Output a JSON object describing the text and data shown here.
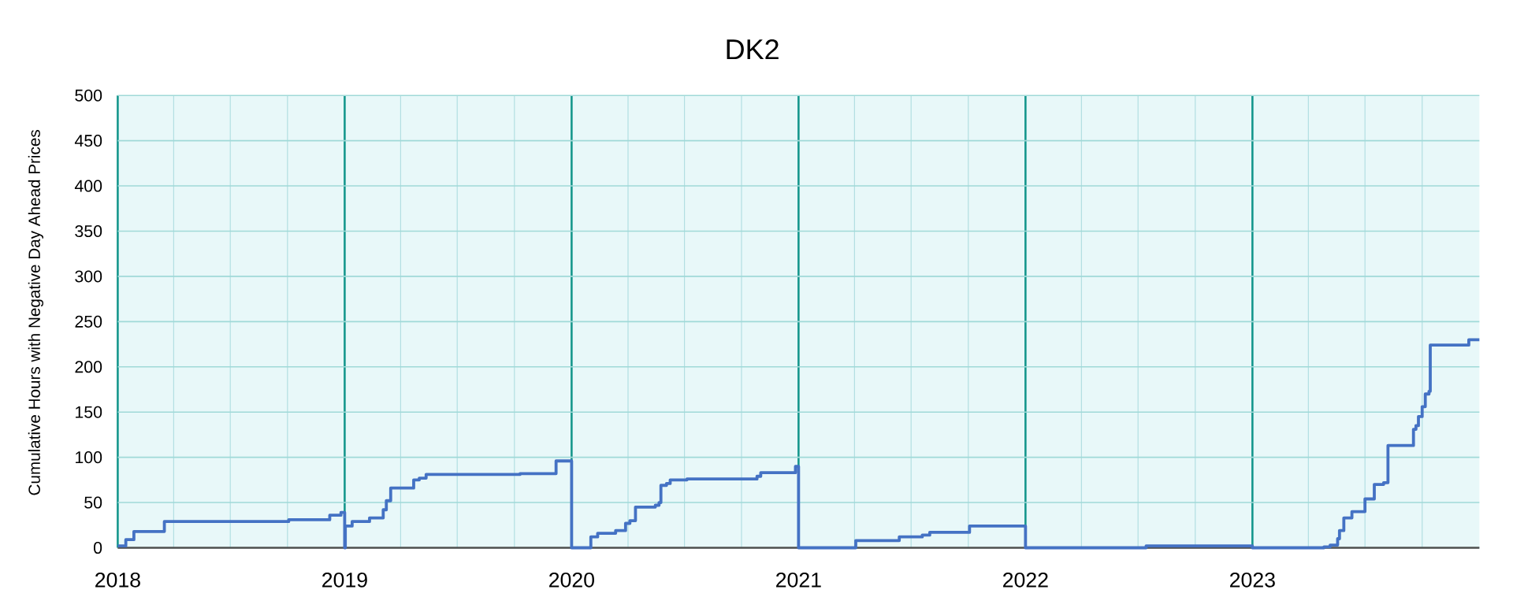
{
  "chart_data": {
    "type": "step",
    "title": "DK2",
    "ylabel": "Cumulative Hours with Negative Day Ahead Prices",
    "x": [
      "2018-01-01",
      "2018-01-14",
      "2018-01-27",
      "2018-03-17",
      "2018-10-03",
      "2018-12-08",
      "2018-12-26",
      "2019-01-01",
      "2019-01-02",
      "2019-01-13",
      "2019-02-10",
      "2019-03-04",
      "2019-03-09",
      "2019-03-16",
      "2019-04-22",
      "2019-05-01",
      "2019-05-12",
      "2019-10-10",
      "2019-12-07",
      "2020-01-01",
      "2020-02-01",
      "2020-02-12",
      "2020-03-12",
      "2020-03-28",
      "2020-04-04",
      "2020-04-13",
      "2020-05-15",
      "2020-05-21",
      "2020-05-24",
      "2020-06-02",
      "2020-06-08",
      "2020-07-05",
      "2020-10-26",
      "2020-11-01",
      "2020-12-27",
      "2021-01-01",
      "2021-04-03",
      "2021-06-12",
      "2021-07-19",
      "2021-07-31",
      "2021-10-03",
      "2022-01-01",
      "2022-07-14",
      "2023-01-01",
      "2023-04-26",
      "2023-05-06",
      "2023-05-18",
      "2023-05-21",
      "2023-05-28",
      "2023-06-10",
      "2023-07-01",
      "2023-07-16",
      "2023-07-31",
      "2023-08-07",
      "2023-09-17",
      "2023-09-21",
      "2023-09-25",
      "2023-10-01",
      "2023-10-06",
      "2023-10-12",
      "2023-10-14",
      "2023-12-15",
      "2024-01-01"
    ],
    "values": [
      2,
      9,
      18,
      29,
      31,
      36,
      39,
      0,
      24,
      29,
      33,
      42,
      52,
      66,
      75,
      77,
      81,
      82,
      96,
      0,
      12,
      16,
      19,
      27,
      30,
      45,
      47,
      50,
      69,
      71,
      75,
      76,
      79,
      83,
      90,
      0,
      8,
      12,
      14,
      17,
      24,
      0,
      2,
      0,
      1,
      3,
      10,
      19,
      33,
      40,
      54,
      70,
      72,
      113,
      131,
      135,
      145,
      156,
      170,
      173,
      224,
      230,
      230
    ],
    "color": "#4472c4",
    "line_style": "solid",
    "xlim": [
      "2018-01-01",
      "2024-01-01"
    ],
    "ylim": [
      0,
      500
    ],
    "xticks": [
      {
        "value": "2018-01-01",
        "label": "2018"
      },
      {
        "value": "2018-04-01",
        "label": null
      },
      {
        "value": "2018-07-01",
        "label": null
      },
      {
        "value": "2018-10-01",
        "label": null
      },
      {
        "value": "2019-01-01",
        "label": "2019"
      },
      {
        "value": "2019-04-01",
        "label": null
      },
      {
        "value": "2019-07-01",
        "label": null
      },
      {
        "value": "2019-10-01",
        "label": null
      },
      {
        "value": "2020-01-01",
        "label": "2020"
      },
      {
        "value": "2020-04-01",
        "label": null
      },
      {
        "value": "2020-07-01",
        "label": null
      },
      {
        "value": "2020-10-01",
        "label": null
      },
      {
        "value": "2021-01-01",
        "label": "2021"
      },
      {
        "value": "2021-04-01",
        "label": null
      },
      {
        "value": "2021-07-01",
        "label": null
      },
      {
        "value": "2021-10-01",
        "label": null
      },
      {
        "value": "2022-01-01",
        "label": "2022"
      },
      {
        "value": "2022-04-01",
        "label": null
      },
      {
        "value": "2022-07-01",
        "label": null
      },
      {
        "value": "2022-10-01",
        "label": null
      },
      {
        "value": "2023-01-01",
        "label": "2023"
      },
      {
        "value": "2023-04-01",
        "label": null
      },
      {
        "value": "2023-07-01",
        "label": null
      },
      {
        "value": "2023-10-01",
        "label": null
      }
    ],
    "yticks": [
      0,
      50,
      100,
      150,
      200,
      250,
      300,
      350,
      400,
      450,
      500
    ],
    "grid": true
  }
}
